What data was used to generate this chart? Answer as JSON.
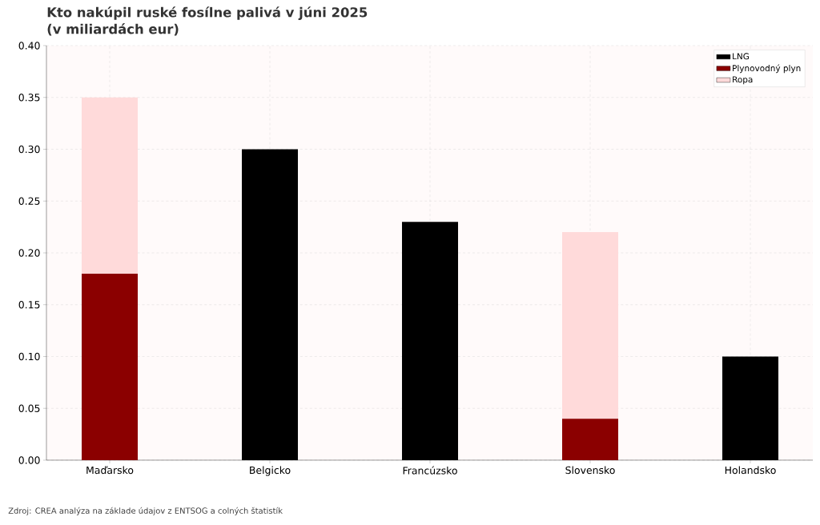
{
  "chart_data": {
    "type": "bar",
    "stacked": true,
    "title": "Kto nakúpil ruské fosílne palivá v júni 2025\n(v miliardách eur)",
    "categories": [
      "Maďarsko",
      "Belgicko",
      "Francúzsko",
      "Slovensko",
      "Holandsko"
    ],
    "series": [
      {
        "name": "LNG",
        "color": "#000000",
        "values": [
          0,
          0.3,
          0.23,
          0,
          0.1
        ]
      },
      {
        "name": "Plynovodný plyn",
        "color": "#8b0000",
        "values": [
          0.18,
          0,
          0,
          0.04,
          0
        ]
      },
      {
        "name": "Ropa",
        "color": "#ffdada",
        "values": [
          0.17,
          0,
          0,
          0.18,
          0
        ]
      }
    ],
    "ylim": [
      0,
      0.4
    ],
    "yticks": [
      {
        "value": 0,
        "label": "0.00"
      },
      {
        "value": 0.05,
        "label": "0.05"
      },
      {
        "value": 0.1,
        "label": "0.10"
      },
      {
        "value": 0.15,
        "label": "0.15"
      },
      {
        "value": 0.2,
        "label": "0.20"
      },
      {
        "value": 0.25,
        "label": "0.25"
      },
      {
        "value": 0.3,
        "label": "0.30"
      },
      {
        "value": 0.35,
        "label": "0.35"
      },
      {
        "value": 0.4,
        "label": "0.40"
      }
    ],
    "grid": true,
    "legend": "top right",
    "annotations": [
      "Zdroj: CREA analýza na základe údajov z ENTSOG a colných štatistík"
    ]
  }
}
